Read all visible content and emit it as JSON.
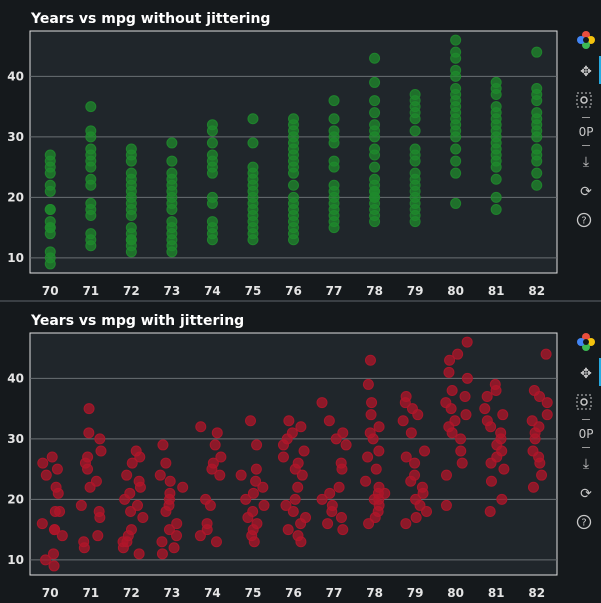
{
  "chart_data": [
    {
      "type": "scatter",
      "title": "Years vs mpg without jittering",
      "xlabel": "",
      "ylabel": "",
      "categories": [
        "70",
        "71",
        "72",
        "73",
        "74",
        "75",
        "76",
        "77",
        "78",
        "79",
        "80",
        "81",
        "82"
      ],
      "ylim": [
        7.5,
        47.5
      ],
      "yticks": [
        10,
        20,
        30,
        40
      ],
      "grid": true,
      "marker_color": "#1f8a2c",
      "points": {
        "70": [
          9,
          10,
          11,
          14,
          15,
          15,
          16,
          18,
          18,
          21,
          22,
          24,
          25,
          26,
          27
        ],
        "71": [
          12,
          13,
          14,
          17,
          18,
          19,
          22,
          23,
          25,
          26,
          27,
          28,
          30,
          31,
          35
        ],
        "72": [
          11,
          12,
          13,
          13,
          14,
          15,
          17,
          18,
          19,
          20,
          21,
          22,
          23,
          24,
          26,
          27,
          28
        ],
        "73": [
          11,
          12,
          13,
          14,
          15,
          16,
          18,
          19,
          20,
          21,
          22,
          23,
          24,
          26,
          29
        ],
        "74": [
          13,
          14,
          15,
          16,
          19,
          20,
          24,
          25,
          26,
          27,
          29,
          31,
          32
        ],
        "75": [
          13,
          14,
          15,
          16,
          17,
          18,
          19,
          20,
          21,
          22,
          23,
          24,
          25,
          29,
          33
        ],
        "76": [
          13,
          14,
          15,
          16,
          17,
          18,
          19,
          20,
          22,
          24,
          25,
          26,
          27,
          28,
          29,
          30,
          31,
          32,
          33
        ],
        "77": [
          15,
          16,
          17,
          18,
          19,
          20,
          21,
          22,
          25,
          26,
          29,
          30,
          31,
          33,
          36
        ],
        "78": [
          16,
          17,
          18,
          19,
          20,
          20,
          21,
          21,
          22,
          23,
          25,
          27,
          28,
          30,
          31,
          32,
          34,
          36,
          39,
          43
        ],
        "79": [
          16,
          17,
          18,
          19,
          20,
          21,
          22,
          23,
          24,
          26,
          27,
          28,
          31,
          33,
          34,
          35,
          36,
          37
        ],
        "80": [
          19,
          24,
          26,
          28,
          30,
          31,
          32,
          33,
          34,
          35,
          36,
          37,
          38,
          40,
          41,
          43,
          44,
          46
        ],
        "81": [
          18,
          20,
          23,
          25,
          26,
          27,
          28,
          29,
          30,
          31,
          32,
          33,
          34,
          35,
          37,
          38,
          39
        ],
        "82": [
          22,
          24,
          26,
          27,
          28,
          30,
          31,
          32,
          33,
          34,
          36,
          37,
          38,
          44
        ]
      }
    },
    {
      "type": "scatter",
      "title": "Years vs mpg with jittering",
      "xlabel": "",
      "ylabel": "",
      "categories": [
        "70",
        "71",
        "72",
        "73",
        "74",
        "75",
        "76",
        "77",
        "78",
        "79",
        "80",
        "81",
        "82"
      ],
      "ylim": [
        7.5,
        47.5
      ],
      "yticks": [
        10,
        20,
        30,
        40
      ],
      "grid": true,
      "marker_color": "#b0162a",
      "jitter": 0.3,
      "points": {
        "70": [
          9,
          10,
          11,
          14,
          15,
          15,
          16,
          18,
          18,
          21,
          22,
          24,
          25,
          26,
          27
        ],
        "71": [
          12,
          13,
          14,
          17,
          18,
          19,
          22,
          23,
          25,
          26,
          27,
          28,
          30,
          31,
          35
        ],
        "72": [
          11,
          12,
          13,
          13,
          14,
          15,
          17,
          18,
          19,
          20,
          21,
          22,
          23,
          24,
          26,
          27,
          28
        ],
        "73": [
          11,
          12,
          13,
          14,
          15,
          16,
          18,
          19,
          20,
          21,
          22,
          23,
          24,
          26,
          29
        ],
        "74": [
          13,
          14,
          15,
          16,
          19,
          20,
          24,
          25,
          26,
          27,
          29,
          31,
          32
        ],
        "75": [
          13,
          14,
          15,
          16,
          17,
          18,
          19,
          20,
          21,
          22,
          23,
          24,
          25,
          29,
          33
        ],
        "76": [
          13,
          14,
          15,
          16,
          17,
          18,
          19,
          20,
          22,
          24,
          25,
          26,
          27,
          28,
          29,
          30,
          31,
          32,
          33
        ],
        "77": [
          15,
          16,
          17,
          18,
          19,
          20,
          21,
          22,
          25,
          26,
          29,
          30,
          31,
          33,
          36
        ],
        "78": [
          16,
          17,
          18,
          19,
          20,
          20,
          21,
          21,
          22,
          23,
          25,
          27,
          28,
          30,
          31,
          32,
          34,
          36,
          39,
          43
        ],
        "79": [
          16,
          17,
          18,
          19,
          20,
          21,
          22,
          23,
          24,
          26,
          27,
          28,
          31,
          33,
          34,
          35,
          36,
          37
        ],
        "80": [
          19,
          24,
          26,
          28,
          30,
          31,
          32,
          33,
          34,
          35,
          36,
          37,
          38,
          40,
          41,
          43,
          44,
          46
        ],
        "81": [
          18,
          20,
          23,
          25,
          26,
          27,
          28,
          29,
          30,
          31,
          32,
          33,
          34,
          35,
          37,
          38,
          39
        ],
        "82": [
          22,
          24,
          26,
          27,
          28,
          30,
          31,
          32,
          33,
          34,
          36,
          37,
          38,
          44
        ]
      }
    }
  ],
  "toolbar": {
    "icons": [
      "bokeh-logo-icon",
      "pan-icon",
      "box-zoom-icon",
      "wheel-zoom-icon",
      "save-icon",
      "reset-icon",
      "help-icon"
    ]
  }
}
